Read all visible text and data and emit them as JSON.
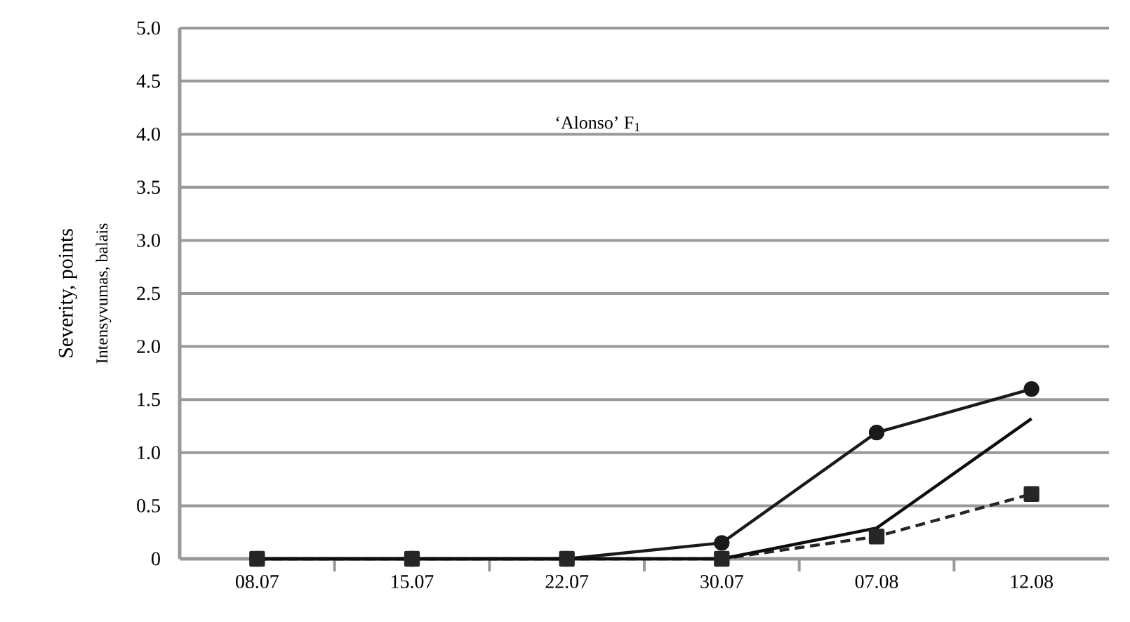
{
  "chart_data": {
    "type": "line",
    "ylabel": "Severity, points",
    "annotations": [
      "‘Alonso’ F$_{1}$",
      "Intensyvumas, balais"
    ],
    "categories": [
      "08.07",
      "15.07",
      "22.07",
      "30.07",
      "07.08",
      "12.08"
    ],
    "series": [
      {
        "color": "#1a1a1a",
        "values": [
          0,
          0,
          0,
          0.15,
          1.19,
          1.6
        ],
        "marker": "circle",
        "line_style": "solid"
      },
      {
        "color": "#262626",
        "values": [
          0,
          0,
          0,
          0,
          0.21,
          0.61
        ],
        "marker": "square",
        "line_style": "dashed"
      },
      {
        "color": "#0d0d0d",
        "values": [
          0,
          0,
          0,
          0,
          0.29,
          1.32
        ],
        "marker": "none",
        "line_style": "solid"
      }
    ],
    "ylim": [
      0,
      5
    ],
    "yticks": [
      {
        "value": 0,
        "label": "0"
      },
      {
        "value": 0.5,
        "label": "0.5"
      },
      {
        "value": 1,
        "label": "1.0"
      },
      {
        "value": 1.5,
        "label": "1.5"
      },
      {
        "value": 2,
        "label": "2.0"
      },
      {
        "value": 2.5,
        "label": "2.5"
      },
      {
        "value": 3,
        "label": "3.0"
      },
      {
        "value": 3.5,
        "label": "3.5"
      },
      {
        "value": 4,
        "label": "4.0"
      },
      {
        "value": 4.5,
        "label": "4.5"
      },
      {
        "value": 5,
        "label": "5.0"
      }
    ],
    "grid": "y"
  }
}
